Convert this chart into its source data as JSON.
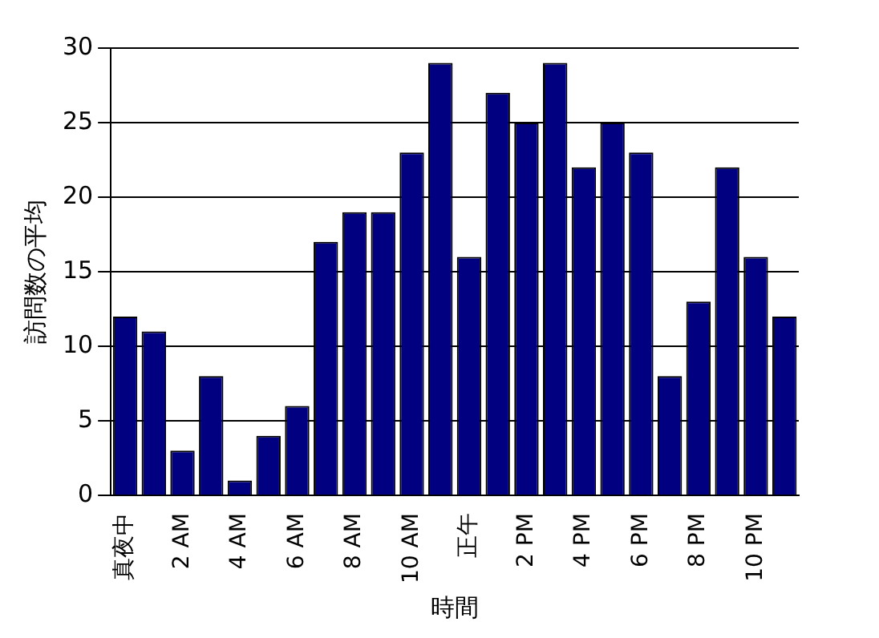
{
  "chart_data": {
    "type": "bar",
    "xlabel": "時間",
    "ylabel": "訪問数の平均",
    "categories": [
      "真夜中",
      null,
      "2 AM",
      null,
      "4 AM",
      null,
      "6 AM",
      null,
      "8 AM",
      null,
      "10 AM",
      null,
      "正午",
      null,
      "2 PM",
      null,
      "4 PM",
      null,
      "6 PM",
      null,
      "8 PM",
      null,
      "10 PM",
      null
    ],
    "values": [
      12,
      11,
      3,
      8,
      1,
      4,
      6,
      17,
      19,
      19,
      23,
      29,
      16,
      27,
      25,
      29,
      22,
      25,
      23,
      8,
      13,
      22,
      16,
      12
    ],
    "color": "#000080",
    "ylim": [
      0,
      30
    ],
    "yticks": [
      0,
      5,
      10,
      15,
      20,
      25,
      30
    ],
    "grid": "y",
    "legend": false
  }
}
